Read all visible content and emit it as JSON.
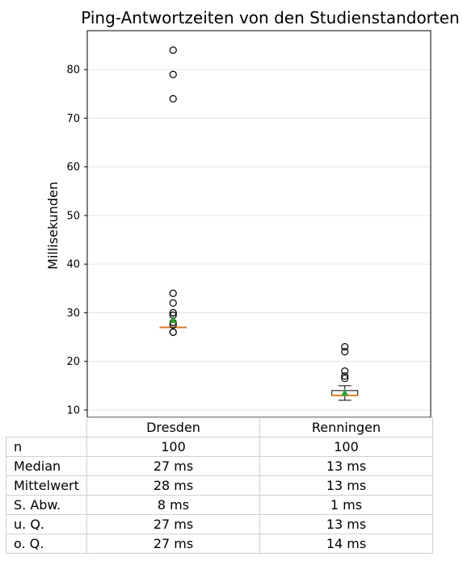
{
  "chart_data": {
    "type": "box",
    "title": "Ping-Antwortzeiten von den Studienstandorten",
    "ylabel": "Millisekunden",
    "xlabel": "",
    "ylim": [
      8.5,
      88
    ],
    "yticks": [
      10,
      20,
      30,
      40,
      50,
      60,
      70,
      80
    ],
    "grid": "horizontal",
    "categories": [
      "Dresden",
      "Renningen"
    ],
    "boxes": [
      {
        "category": "Dresden",
        "q1": 27,
        "median": 27,
        "q3": 27,
        "mean": 28.5,
        "whisker_low": 27,
        "whisker_high": 27,
        "outliers": [
          84,
          79,
          74,
          34,
          32,
          30,
          30,
          29.5,
          28,
          27.5,
          26,
          26
        ]
      },
      {
        "category": "Renningen",
        "q1": 13,
        "median": 13,
        "q3": 14,
        "mean": 13.5,
        "whisker_low": 12,
        "whisker_high": 15,
        "outliers": [
          23,
          22,
          18,
          17,
          16.5
        ]
      }
    ],
    "colors": {
      "box": "#000000",
      "median": "#e07b1f",
      "mean": "#2ca02c",
      "grid": "#e6e6e6"
    }
  },
  "table": {
    "columns": [
      "Dresden",
      "Renningen"
    ],
    "rows": [
      {
        "label": "n",
        "values": [
          "100",
          "100"
        ]
      },
      {
        "label": "Median",
        "values": [
          "27 ms",
          "13 ms"
        ]
      },
      {
        "label": "Mittelwert",
        "values": [
          "28 ms",
          "13 ms"
        ]
      },
      {
        "label": "S. Abw.",
        "values": [
          "8 ms",
          "1 ms"
        ]
      },
      {
        "label": "u. Q.",
        "values": [
          "27 ms",
          "13 ms"
        ]
      },
      {
        "label": "o. Q.",
        "values": [
          "27 ms",
          "14 ms"
        ]
      }
    ]
  }
}
